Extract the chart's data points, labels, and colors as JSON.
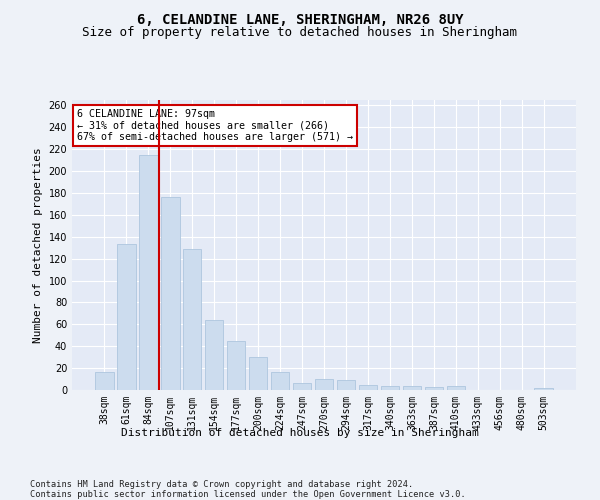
{
  "title": "6, CELANDINE LANE, SHERINGHAM, NR26 8UY",
  "subtitle": "Size of property relative to detached houses in Sheringham",
  "xlabel": "Distribution of detached houses by size in Sheringham",
  "ylabel": "Number of detached properties",
  "categories": [
    "38sqm",
    "61sqm",
    "84sqm",
    "107sqm",
    "131sqm",
    "154sqm",
    "177sqm",
    "200sqm",
    "224sqm",
    "247sqm",
    "270sqm",
    "294sqm",
    "317sqm",
    "340sqm",
    "363sqm",
    "387sqm",
    "410sqm",
    "433sqm",
    "456sqm",
    "480sqm",
    "503sqm"
  ],
  "values": [
    16,
    133,
    215,
    176,
    129,
    64,
    45,
    30,
    16,
    6,
    10,
    9,
    5,
    4,
    4,
    3,
    4,
    0,
    0,
    0,
    2
  ],
  "bar_color": "#ccdcee",
  "bar_edge_color": "#aec6de",
  "vline_x_index": 2.5,
  "vline_color": "#cc0000",
  "annotation_text": "6 CELANDINE LANE: 97sqm\n← 31% of detached houses are smaller (266)\n67% of semi-detached houses are larger (571) →",
  "annotation_box_color": "#ffffff",
  "annotation_box_edge": "#cc0000",
  "ylim": [
    0,
    265
  ],
  "yticks": [
    0,
    20,
    40,
    60,
    80,
    100,
    120,
    140,
    160,
    180,
    200,
    220,
    240,
    260
  ],
  "background_color": "#eef2f8",
  "plot_bg_color": "#e4eaf6",
  "grid_color": "#ffffff",
  "title_fontsize": 10,
  "subtitle_fontsize": 9,
  "axis_label_fontsize": 8,
  "tick_fontsize": 7,
  "footer_text": "Contains HM Land Registry data © Crown copyright and database right 2024.\nContains public sector information licensed under the Open Government Licence v3.0."
}
